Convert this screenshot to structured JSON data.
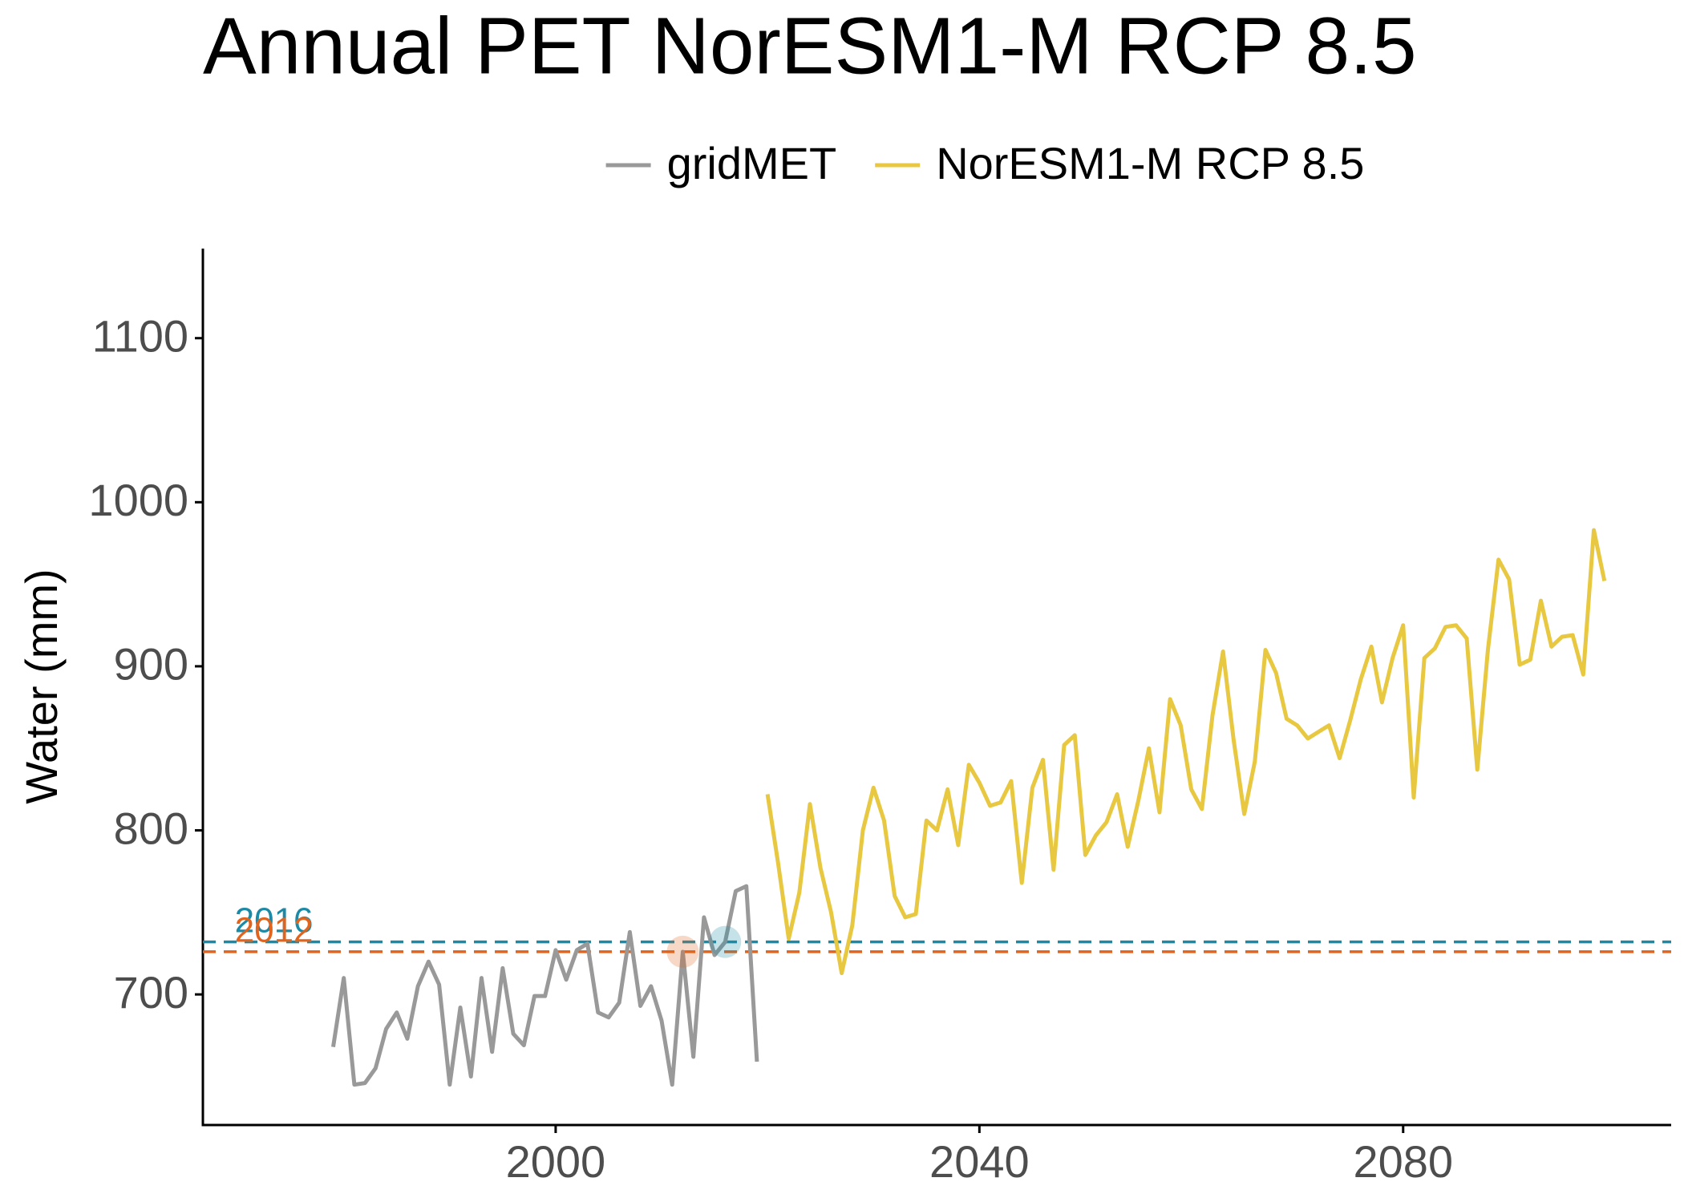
{
  "chart_data": {
    "type": "line",
    "title": "Annual PET NorESM1-M RCP 8.5",
    "y_label": "Water (mm)",
    "xlim": [
      1966.7,
      2105.3
    ],
    "xticks": [
      2000,
      2040,
      2080
    ],
    "ylim": [
      620.4,
      1154.6
    ],
    "yticks": [
      700,
      800,
      900,
      1000,
      1100
    ],
    "grid": false,
    "legend": "top",
    "series": [
      {
        "name": "gridMET",
        "color": "#999999",
        "x": [
          1979,
          1980,
          1981,
          1982,
          1983,
          1984,
          1985,
          1986,
          1987,
          1988,
          1989,
          1990,
          1991,
          1992,
          1993,
          1994,
          1995,
          1996,
          1997,
          1998,
          1999,
          2000,
          2001,
          2002,
          2003,
          2004,
          2005,
          2006,
          2007,
          2008,
          2009,
          2010,
          2011,
          2012,
          2013,
          2014,
          2015,
          2016,
          2017,
          2018,
          2019
        ],
        "values": [
          668,
          710,
          645,
          646,
          655,
          679,
          689,
          673,
          705,
          720,
          706,
          645,
          692,
          650,
          710,
          665,
          716,
          676,
          669,
          699,
          699,
          727,
          709,
          727,
          731,
          689,
          686,
          695,
          738,
          693,
          705,
          684,
          645,
          726,
          662,
          747,
          724,
          732,
          763,
          766,
          659
        ]
      },
      {
        "name": "NorESM1-M RCP 8.5",
        "color": "#E8C840",
        "x": [
          2020,
          2021,
          2022,
          2023,
          2024,
          2025,
          2026,
          2027,
          2028,
          2029,
          2030,
          2031,
          2032,
          2033,
          2034,
          2035,
          2036,
          2037,
          2038,
          2039,
          2040,
          2041,
          2042,
          2043,
          2044,
          2045,
          2046,
          2047,
          2048,
          2049,
          2050,
          2051,
          2052,
          2053,
          2054,
          2055,
          2056,
          2057,
          2058,
          2059,
          2060,
          2061,
          2062,
          2063,
          2064,
          2065,
          2066,
          2067,
          2068,
          2069,
          2070,
          2071,
          2072,
          2073,
          2074,
          2075,
          2076,
          2077,
          2078,
          2079,
          2080,
          2081,
          2082,
          2083,
          2084,
          2085,
          2086,
          2087,
          2088,
          2089,
          2090,
          2091,
          2092,
          2093,
          2094,
          2095,
          2096,
          2097,
          2098,
          2099
        ],
        "values": [
          822,
          780,
          734,
          762,
          816,
          777,
          750,
          713,
          742,
          800,
          826,
          806,
          760,
          747,
          749,
          806,
          800,
          825,
          791,
          840,
          829,
          815,
          817,
          830,
          768,
          826,
          843,
          776,
          852,
          858,
          785,
          797,
          805,
          822,
          790,
          818,
          850,
          811,
          880,
          864,
          825,
          813,
          870,
          909,
          855,
          810,
          842,
          910,
          896,
          868,
          864,
          856,
          860,
          864,
          844,
          867,
          892,
          912,
          878,
          905,
          925,
          820,
          905,
          911,
          924,
          925,
          917,
          837,
          910,
          965,
          953,
          901,
          904,
          940,
          912,
          918,
          919,
          895,
          983,
          952
        ]
      }
    ],
    "reference_lines": [
      {
        "label": "2016",
        "year": 2016,
        "value": 732,
        "color": "#1B8AA6"
      },
      {
        "label": "2012",
        "year": 2012,
        "value": 726,
        "color": "#E0641E"
      }
    ]
  }
}
